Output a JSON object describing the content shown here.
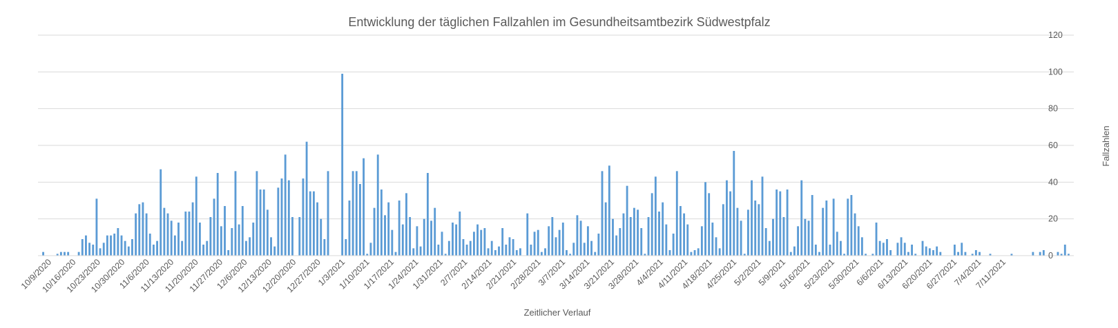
{
  "chart_data": {
    "type": "bar",
    "title": "Entwicklung der täglichen Fallzahlen im Gesundheitsamtbezirk Südwestpfalz",
    "xlabel": "Zeitlicher Verlauf",
    "ylabel": "Fallzahlen",
    "ylim": [
      0,
      120
    ],
    "yticks": [
      0,
      20,
      40,
      60,
      80,
      100,
      120
    ],
    "y_axis_side": "right",
    "grid": true,
    "legend": "none",
    "bar_color": "#5b9bd5",
    "x_tick_labels": [
      "10/9/2020",
      "10/16/2020",
      "10/23/2020",
      "10/30/2020",
      "11/6/2020",
      "11/13/2020",
      "11/20/2020",
      "11/27/2020",
      "12/6/2020",
      "12/13/2020",
      "12/20/2020",
      "12/27/2020",
      "1/3/2021",
      "1/10/2021",
      "1/17/2021",
      "1/24/2021",
      "1/31/2021",
      "2/7/2021",
      "2/14/2021",
      "2/21/2021",
      "2/28/2021",
      "3/7/2021",
      "3/14/2021",
      "3/21/2021",
      "3/28/2021",
      "4/4/2021",
      "4/11/2021",
      "4/18/2021",
      "4/25/2021",
      "5/2/2021",
      "5/9/2021",
      "5/16/2021",
      "5/23/2021",
      "5/30/2021",
      "6/6/2021",
      "6/13/2021",
      "6/20/2021",
      "6/27/2021",
      "7/4/2021",
      "7/11/2021"
    ],
    "values": [
      2,
      0,
      0,
      0,
      1,
      2,
      2,
      2,
      0,
      0,
      2,
      9,
      11,
      7,
      6,
      31,
      4,
      7,
      11,
      11,
      12,
      15,
      11,
      8,
      5,
      9,
      23,
      28,
      29,
      23,
      12,
      6,
      8,
      47,
      26,
      23,
      19,
      11,
      18,
      8,
      24,
      24,
      29,
      43,
      18,
      6,
      8,
      21,
      31,
      45,
      16,
      27,
      3,
      15,
      46,
      17,
      27,
      8,
      10,
      18,
      46,
      36,
      36,
      25,
      10,
      5,
      37,
      42,
      55,
      41,
      21,
      0,
      21,
      42,
      62,
      35,
      35,
      29,
      20,
      9,
      46,
      0,
      0,
      0,
      99,
      9,
      30,
      46,
      46,
      39,
      53,
      1,
      7,
      26,
      55,
      36,
      22,
      29,
      14,
      2,
      30,
      17,
      34,
      21,
      4,
      16,
      5,
      20,
      45,
      19,
      26,
      6,
      13,
      1,
      8,
      18,
      17,
      24,
      9,
      6,
      8,
      13,
      17,
      14,
      15,
      4,
      8,
      3,
      5,
      15,
      6,
      10,
      9,
      3,
      4,
      0,
      23,
      6,
      13,
      14,
      2,
      4,
      16,
      21,
      10,
      14,
      18,
      3,
      1,
      7,
      22,
      19,
      7,
      16,
      8,
      2,
      12,
      46,
      29,
      49,
      20,
      11,
      15,
      23,
      38,
      21,
      26,
      25,
      15,
      1,
      21,
      34,
      43,
      24,
      29,
      17,
      3,
      12,
      46,
      27,
      23,
      17,
      2,
      3,
      4,
      16,
      40,
      34,
      18,
      10,
      4,
      28,
      41,
      35,
      57,
      26,
      19,
      1,
      25,
      41,
      30,
      28,
      43,
      15,
      8,
      20,
      36,
      35,
      21,
      36,
      2,
      5,
      16,
      41,
      20,
      19,
      33,
      6,
      2,
      26,
      30,
      6,
      31,
      13,
      8,
      1,
      31,
      33,
      23,
      16,
      10,
      1,
      0,
      1,
      18,
      8,
      7,
      9,
      3,
      0,
      7,
      10,
      7,
      2,
      6,
      1,
      0,
      8,
      5,
      4,
      3,
      5,
      2,
      0,
      0,
      0,
      6,
      2,
      7,
      2,
      0,
      1,
      3,
      2,
      0,
      0,
      1,
      0,
      0,
      0,
      0,
      0,
      1,
      0,
      0,
      0,
      0,
      0,
      2,
      0,
      2,
      3,
      0,
      0,
      0,
      2,
      1,
      6,
      1
    ]
  }
}
